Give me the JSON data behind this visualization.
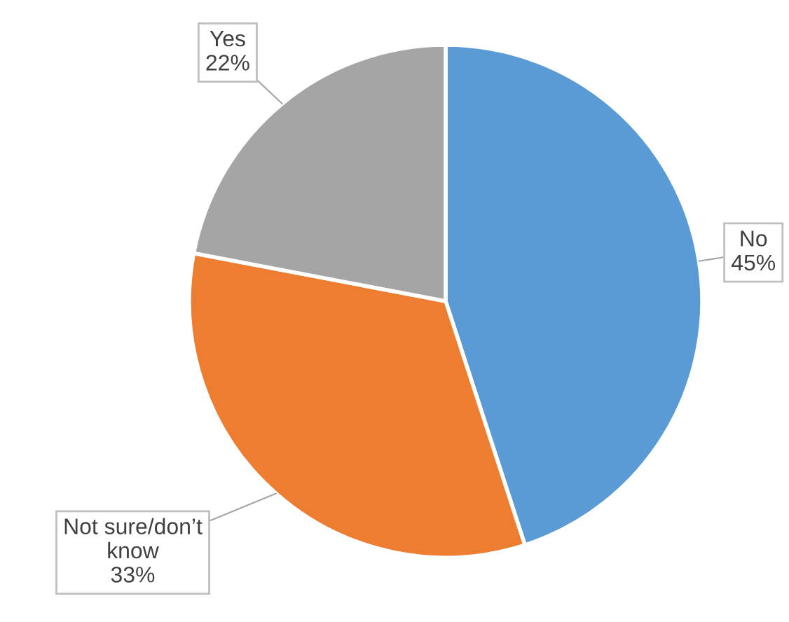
{
  "chart_data": {
    "type": "pie",
    "categories": [
      "No",
      "Not sure/don’t\nknow",
      "Yes"
    ],
    "values": [
      45,
      33,
      22
    ],
    "value_labels": [
      "45%",
      "33%",
      "22%"
    ],
    "colors": [
      "#5b9bd5",
      "#ed7d31",
      "#a5a5a5"
    ],
    "legend": false
  }
}
